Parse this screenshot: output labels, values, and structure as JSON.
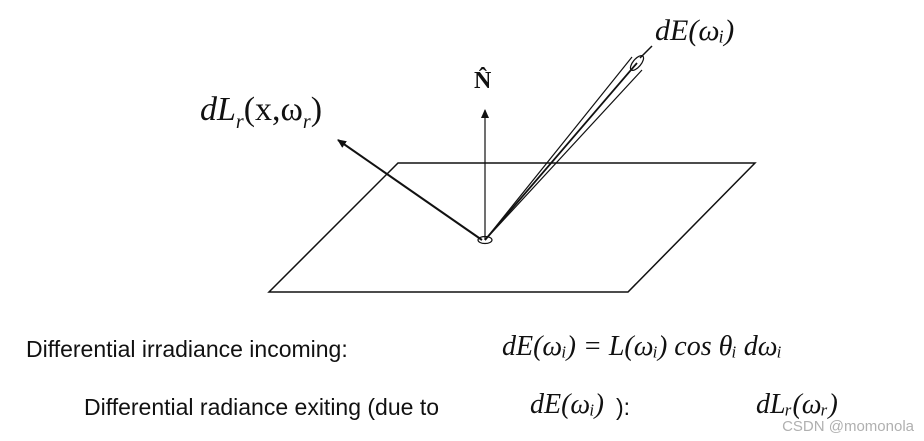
{
  "labels": {
    "normal": "N̂",
    "incoming": "dE(ωᵢ)",
    "outgoing_main": "dL",
    "outgoing_sub": "r",
    "outgoing_args": "(x,ω",
    "outgoing_args_sub": "r",
    "outgoing_close": ")"
  },
  "equations": {
    "line1_text": "Differential irradiance incoming:",
    "line1_math": "dE(ωᵢ) = L(ωᵢ) cos θᵢ dωᵢ",
    "line2_text_a": "Differential radiance exiting (due to ",
    "line2_math_a": "dE(ωᵢ)",
    "line2_text_b": "):",
    "line2_math_b": "dLᵣ(ωᵣ)"
  },
  "watermark": "CSDN @momonola"
}
